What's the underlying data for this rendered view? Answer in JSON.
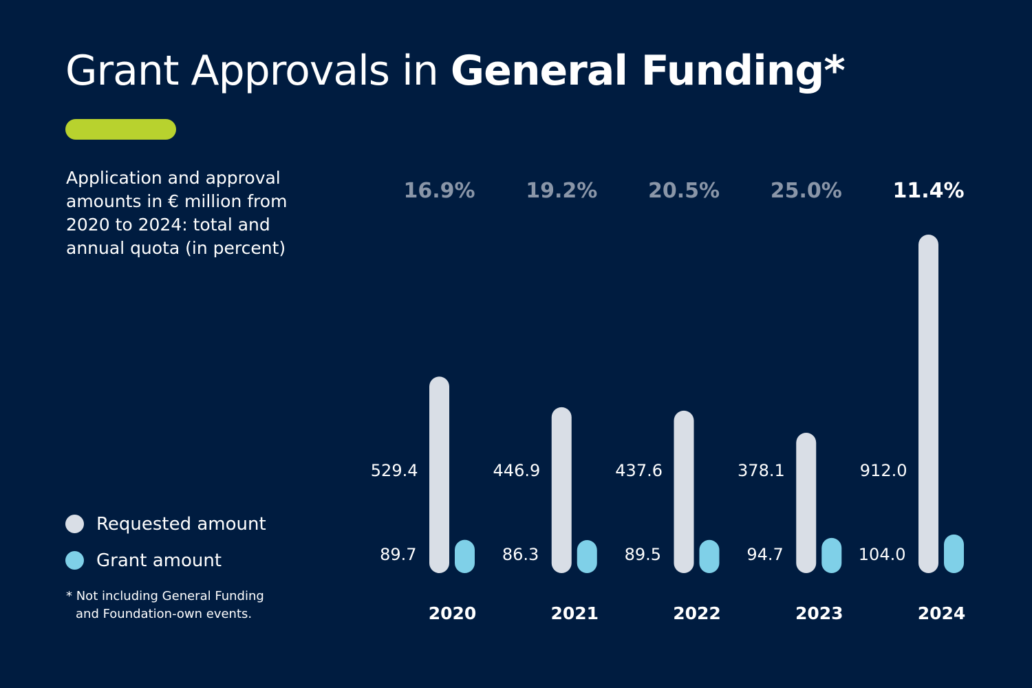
{
  "title": {
    "regular": "Grant Approvals in ",
    "bold": "General Funding*"
  },
  "subtitle": "Application and approval amounts in € million from 2020 to 2024: total and annual quota (in percent)",
  "legend": [
    {
      "label": "Requested amount",
      "color": "#d9dee6"
    },
    {
      "label": "Grant amount",
      "color": "#7fd0e8"
    }
  ],
  "footnote": {
    "line1": "* Not including General Funding",
    "line2": "and Foundation-own events."
  },
  "colors": {
    "background": "#001c40",
    "accent": "#b8d22e",
    "requested": "#d9dee6",
    "granted": "#7fd0e8",
    "quota_muted": "#8a96a8",
    "quota_highlight": "#ffffff"
  },
  "chart_data": {
    "type": "bar",
    "unit": "€ million",
    "categories": [
      "2020",
      "2021",
      "2022",
      "2023",
      "2024"
    ],
    "series": [
      {
        "name": "Requested amount",
        "values": [
          529.4,
          446.9,
          437.6,
          378.1,
          912.0
        ],
        "labels": [
          "529.4",
          "446.9",
          "437.6",
          "378.1",
          "912.0"
        ]
      },
      {
        "name": "Grant amount",
        "values": [
          89.7,
          86.3,
          89.5,
          94.7,
          104.0
        ],
        "labels": [
          "89.7",
          "86.3",
          "89.5",
          "94.7",
          "104.0"
        ]
      }
    ],
    "quota_percent": [
      16.9,
      19.2,
      20.5,
      25.0,
      11.4
    ],
    "quota_labels": [
      "16.9%",
      "19.2%",
      "20.5%",
      "25.0%",
      "11.4%"
    ],
    "highlight_category": "2024",
    "ylim": [
      0,
      912
    ]
  }
}
